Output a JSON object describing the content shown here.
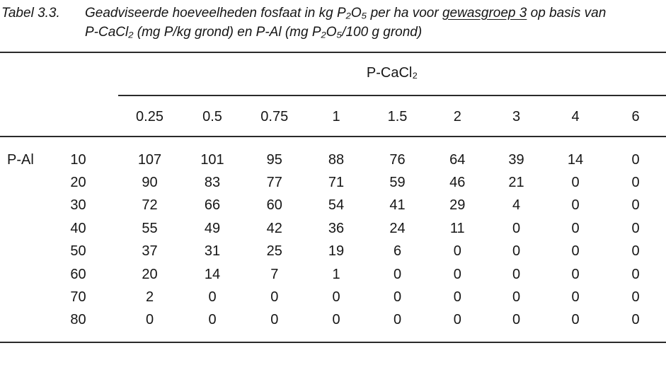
{
  "title": {
    "label": "Tabel 3.3.",
    "line1_pre": "Geadviseerde hoeveelheden fosfaat in kg P₂O₅ per ha voor ",
    "line1_underline": "gewasgroep 3",
    "line1_post": " op basis van",
    "line2": "P-CaCl₂ (mg P/kg grond) en P-Al (mg P₂O₅/100 g grond)"
  },
  "table": {
    "group_header": "P-CaCl₂",
    "row_axis_label": "P-Al",
    "col_headers": [
      "0.25",
      "0.5",
      "0.75",
      "1",
      "1.5",
      "2",
      "3",
      "4",
      "6"
    ],
    "rows": [
      {
        "p_al": "10",
        "values": [
          "107",
          "101",
          "95",
          "88",
          "76",
          "64",
          "39",
          "14",
          "0"
        ]
      },
      {
        "p_al": "20",
        "values": [
          "90",
          "83",
          "77",
          "71",
          "59",
          "46",
          "21",
          "0",
          "0"
        ]
      },
      {
        "p_al": "30",
        "values": [
          "72",
          "66",
          "60",
          "54",
          "41",
          "29",
          "4",
          "0",
          "0"
        ]
      },
      {
        "p_al": "40",
        "values": [
          "55",
          "49",
          "42",
          "36",
          "24",
          "11",
          "0",
          "0",
          "0"
        ]
      },
      {
        "p_al": "50",
        "values": [
          "37",
          "31",
          "25",
          "19",
          "6",
          "0",
          "0",
          "0",
          "0"
        ]
      },
      {
        "p_al": "60",
        "values": [
          "20",
          "14",
          "7",
          "1",
          "0",
          "0",
          "0",
          "0",
          "0"
        ]
      },
      {
        "p_al": "70",
        "values": [
          "2",
          "0",
          "0",
          "0",
          "0",
          "0",
          "0",
          "0",
          "0"
        ]
      },
      {
        "p_al": "80",
        "values": [
          "0",
          "0",
          "0",
          "0",
          "0",
          "0",
          "0",
          "0",
          "0"
        ]
      }
    ]
  }
}
